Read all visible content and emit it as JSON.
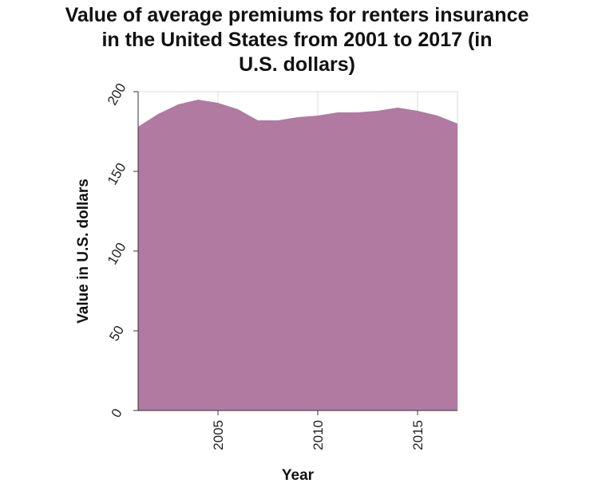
{
  "chart_data": {
    "type": "area",
    "title_lines": [
      "Value of average premiums for renters insurance",
      "in the United States from 2001 to 2017 (in",
      "U.S. dollars)"
    ],
    "xlabel": "Year",
    "ylabel": "Value in U.S. dollars",
    "xlim": [
      2001,
      2017
    ],
    "ylim": [
      0,
      200
    ],
    "x_ticks": [
      2005,
      2010,
      2015
    ],
    "y_ticks": [
      0,
      50,
      100,
      150,
      200
    ],
    "grid": true,
    "fill_color": "#b07aa1",
    "series": [
      {
        "x": [
          2001,
          2002,
          2003,
          2004,
          2005,
          2006,
          2007,
          2008,
          2009,
          2010,
          2011,
          2012,
          2013,
          2014,
          2015,
          2016,
          2017
        ],
        "values": [
          178,
          186,
          192,
          195,
          193,
          189,
          182,
          182,
          184,
          185,
          187,
          187,
          188,
          190,
          188,
          185,
          180
        ]
      }
    ]
  }
}
